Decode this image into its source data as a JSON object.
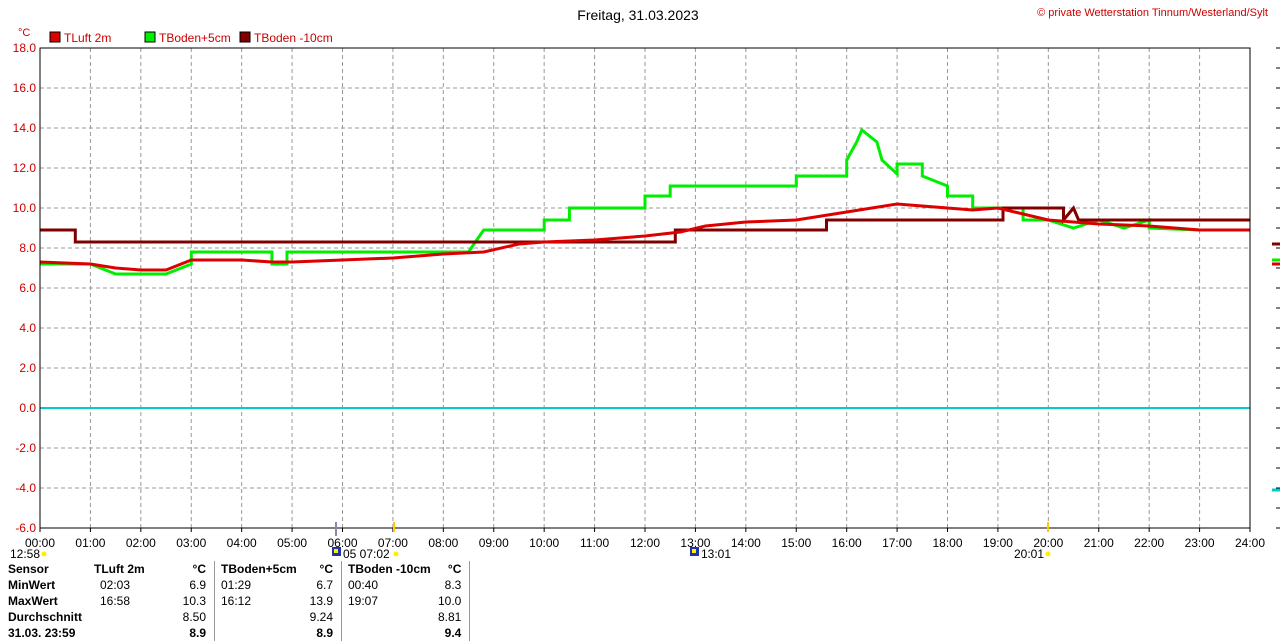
{
  "header": {
    "title": "Freitag, 31.03.2023",
    "copyright": "© private Wetterstation Tinnum/Westerland/Sylt",
    "unit": "°C"
  },
  "legend": [
    {
      "name": "TLuft 2m",
      "color": "#dd0000"
    },
    {
      "name": "TBoden+5cm",
      "color": "#00ee00"
    },
    {
      "name": "TBoden -10cm",
      "color": "#800000"
    }
  ],
  "markers": {
    "first": "12:58",
    "second": "05  07:02",
    "third": "13:01",
    "fourth": "20:01"
  },
  "chart_data": {
    "type": "line",
    "xlabel": "",
    "ylabel": "°C",
    "ylim": [
      -6,
      18
    ],
    "xlim": [
      0,
      24
    ],
    "grid": true,
    "legend_position": "top-left",
    "y_ticks": [
      "18.0",
      "16.0",
      "14.0",
      "12.0",
      "10.0",
      "8.0",
      "6.0",
      "4.0",
      "2.0",
      "0.0",
      "-2.0",
      "-4.0",
      "-6.0"
    ],
    "x_ticks": [
      "00:00",
      "01:00",
      "02:00",
      "03:00",
      "04:00",
      "05:00",
      "06:00",
      "07:00",
      "08:00",
      "09:00",
      "10:00",
      "11:00",
      "12:00",
      "13:00",
      "14:00",
      "15:00",
      "16:00",
      "17:00",
      "18:00",
      "19:00",
      "20:00",
      "21:00",
      "22:00",
      "23:00",
      "24:00"
    ],
    "reference_line": {
      "y": 0.0,
      "color": "#00cccc"
    },
    "series": [
      {
        "name": "TLuft 2m",
        "color": "#dd0000",
        "points": [
          [
            0,
            7.3
          ],
          [
            1,
            7.2
          ],
          [
            1.5,
            7.0
          ],
          [
            2,
            6.9
          ],
          [
            2.5,
            6.9
          ],
          [
            3,
            7.4
          ],
          [
            4,
            7.4
          ],
          [
            4.6,
            7.3
          ],
          [
            5,
            7.3
          ],
          [
            6,
            7.4
          ],
          [
            7,
            7.5
          ],
          [
            8,
            7.7
          ],
          [
            8.8,
            7.8
          ],
          [
            9.5,
            8.2
          ],
          [
            10,
            8.3
          ],
          [
            11,
            8.4
          ],
          [
            12,
            8.6
          ],
          [
            12.7,
            8.8
          ],
          [
            13.2,
            9.1
          ],
          [
            14,
            9.3
          ],
          [
            15,
            9.4
          ],
          [
            15.5,
            9.6
          ],
          [
            16,
            9.8
          ],
          [
            16.5,
            10.0
          ],
          [
            17,
            10.2
          ],
          [
            17.5,
            10.1
          ],
          [
            18,
            10.0
          ],
          [
            18.5,
            9.9
          ],
          [
            19,
            10.0
          ],
          [
            19.5,
            9.7
          ],
          [
            20,
            9.4
          ],
          [
            21,
            9.2
          ],
          [
            22,
            9.1
          ],
          [
            23,
            8.9
          ],
          [
            24,
            8.9
          ]
        ]
      },
      {
        "name": "TBoden+5cm",
        "color": "#00ee00",
        "points": [
          [
            0,
            7.2
          ],
          [
            1,
            7.2
          ],
          [
            1.5,
            6.7
          ],
          [
            2.5,
            6.7
          ],
          [
            3,
            7.2
          ],
          [
            3,
            7.8
          ],
          [
            4.6,
            7.8
          ],
          [
            4.6,
            7.2
          ],
          [
            4.9,
            7.2
          ],
          [
            4.9,
            7.8
          ],
          [
            8.5,
            7.8
          ],
          [
            8.8,
            8.9
          ],
          [
            10,
            8.9
          ],
          [
            10,
            9.4
          ],
          [
            10.5,
            9.4
          ],
          [
            10.5,
            10.0
          ],
          [
            12,
            10.0
          ],
          [
            12,
            10.6
          ],
          [
            12.5,
            10.6
          ],
          [
            12.5,
            11.1
          ],
          [
            13.5,
            11.1
          ],
          [
            14,
            11.1
          ],
          [
            15,
            11.1
          ],
          [
            15,
            11.6
          ],
          [
            16,
            11.6
          ],
          [
            16,
            12.4
          ],
          [
            16.2,
            13.3
          ],
          [
            16.3,
            13.9
          ],
          [
            16.6,
            13.3
          ],
          [
            16.7,
            12.4
          ],
          [
            17,
            11.7
          ],
          [
            17,
            12.2
          ],
          [
            17.5,
            12.2
          ],
          [
            17.5,
            11.6
          ],
          [
            18,
            11.1
          ],
          [
            18,
            10.6
          ],
          [
            18.5,
            10.6
          ],
          [
            18.5,
            10.0
          ],
          [
            19.5,
            10.0
          ],
          [
            19.5,
            9.4
          ],
          [
            20,
            9.4
          ],
          [
            20.5,
            9.0
          ],
          [
            21,
            9.4
          ],
          [
            21.5,
            9.0
          ],
          [
            22,
            9.4
          ],
          [
            22,
            9.0
          ],
          [
            23,
            8.9
          ],
          [
            24,
            8.9
          ]
        ]
      },
      {
        "name": "TBoden -10cm",
        "color": "#800000",
        "points": [
          [
            0,
            8.9
          ],
          [
            0.7,
            8.9
          ],
          [
            0.7,
            8.3
          ],
          [
            12.6,
            8.3
          ],
          [
            12.6,
            8.9
          ],
          [
            15.6,
            8.9
          ],
          [
            15.6,
            9.4
          ],
          [
            19.1,
            9.4
          ],
          [
            19.1,
            10.0
          ],
          [
            20.3,
            10.0
          ],
          [
            20.3,
            9.4
          ],
          [
            20.5,
            10.0
          ],
          [
            20.6,
            9.4
          ],
          [
            24,
            9.4
          ]
        ]
      }
    ],
    "right_edge_values": [
      8.2,
      7.4,
      7.2,
      -4.1
    ]
  },
  "stats": {
    "headers": {
      "sensor": "Sensor",
      "s1": "TLuft 2m",
      "s2": "TBoden+5cm",
      "s3": "TBoden -10cm",
      "unit": "°C"
    },
    "rows": [
      {
        "label": "MinWert",
        "t1": "02:03",
        "v1": "6.9",
        "t2": "01:29",
        "v2": "6.7",
        "t3": "00:40",
        "v3": "8.3"
      },
      {
        "label": "MaxWert",
        "t1": "16:58",
        "v1": "10.3",
        "t2": "16:12",
        "v2": "13.9",
        "t3": "19:07",
        "v3": "10.0"
      },
      {
        "label": "Durchschnitt",
        "t1": "",
        "v1": "8.50",
        "t2": "",
        "v2": "9.24",
        "t3": "",
        "v3": "8.81"
      },
      {
        "label": "31.03. 23:59",
        "t1": "",
        "v1": "8.9",
        "t2": "",
        "v2": "8.9",
        "t3": "",
        "v3": "9.4"
      }
    ]
  }
}
